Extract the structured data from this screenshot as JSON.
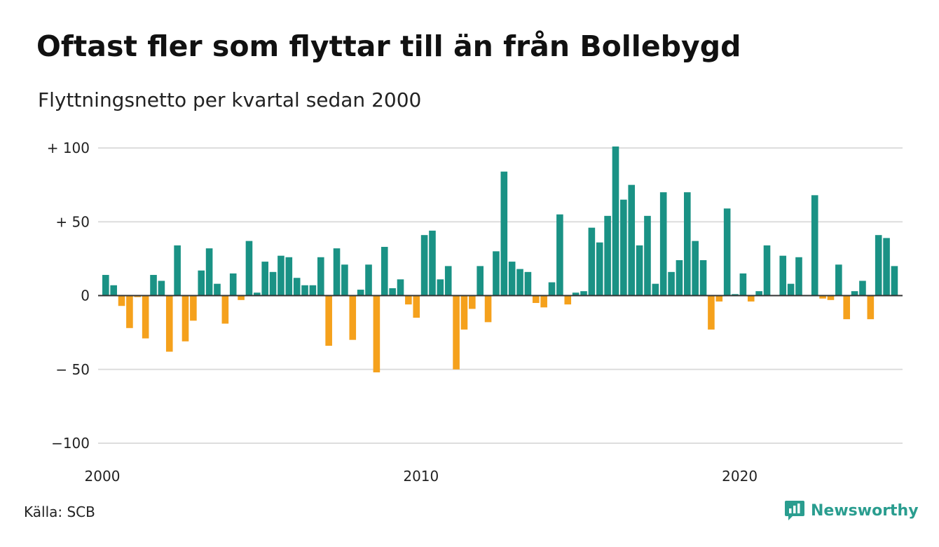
{
  "title": "Oftast fler som flyttar till än från Bollebygd",
  "subtitle": "Flyttningsnetto per kvartal sedan 2000",
  "source": "Källa: SCB",
  "brand": {
    "name": "Newsworthy",
    "icon": "newsworthy-logo-icon"
  },
  "colors": {
    "positive": "#1a9285",
    "negative": "#f5a11c",
    "grid": "#dddddd",
    "zero_line": "#333333",
    "brand": "#2a9d8f"
  },
  "chart_data": {
    "type": "bar",
    "title": "Oftast fler som flyttar till än från Bollebygd",
    "subtitle": "Flyttningsnetto per kvartal sedan 2000",
    "xlabel": "",
    "ylabel": "",
    "ylim": [
      -100,
      100
    ],
    "yticks": [
      {
        "value": 100,
        "label": "+ 100"
      },
      {
        "value": 50,
        "label": "+  50"
      },
      {
        "value": 0,
        "label": "0"
      },
      {
        "value": -50,
        "label": "− 50"
      },
      {
        "value": -100,
        "label": "−100"
      }
    ],
    "xticks": [
      {
        "value": 2000,
        "label": "2000"
      },
      {
        "value": 2010,
        "label": "2010"
      },
      {
        "value": 2020,
        "label": "2020"
      }
    ],
    "grid": true,
    "start_year": 2000,
    "periods_per_year": 4,
    "values": [
      14,
      7,
      -7,
      -22,
      -1,
      -29,
      14,
      10,
      -38,
      34,
      -31,
      -17,
      17,
      32,
      8,
      -19,
      15,
      -3,
      37,
      2,
      23,
      16,
      27,
      26,
      12,
      7,
      7,
      26,
      -34,
      32,
      21,
      -30,
      4,
      21,
      -52,
      33,
      5,
      11,
      -6,
      -15,
      41,
      44,
      11,
      20,
      -50,
      -23,
      -9,
      20,
      -18,
      30,
      84,
      23,
      18,
      16,
      -5,
      -8,
      9,
      55,
      -6,
      2,
      3,
      46,
      36,
      54,
      101,
      65,
      75,
      34,
      54,
      8,
      70,
      16,
      24,
      70,
      37,
      24,
      -23,
      -4,
      59,
      1,
      15,
      -4,
      3,
      34,
      0,
      27,
      8,
      26,
      0,
      68,
      -2,
      -3,
      21,
      -16,
      3,
      10,
      -16,
      41,
      39,
      20
    ]
  }
}
